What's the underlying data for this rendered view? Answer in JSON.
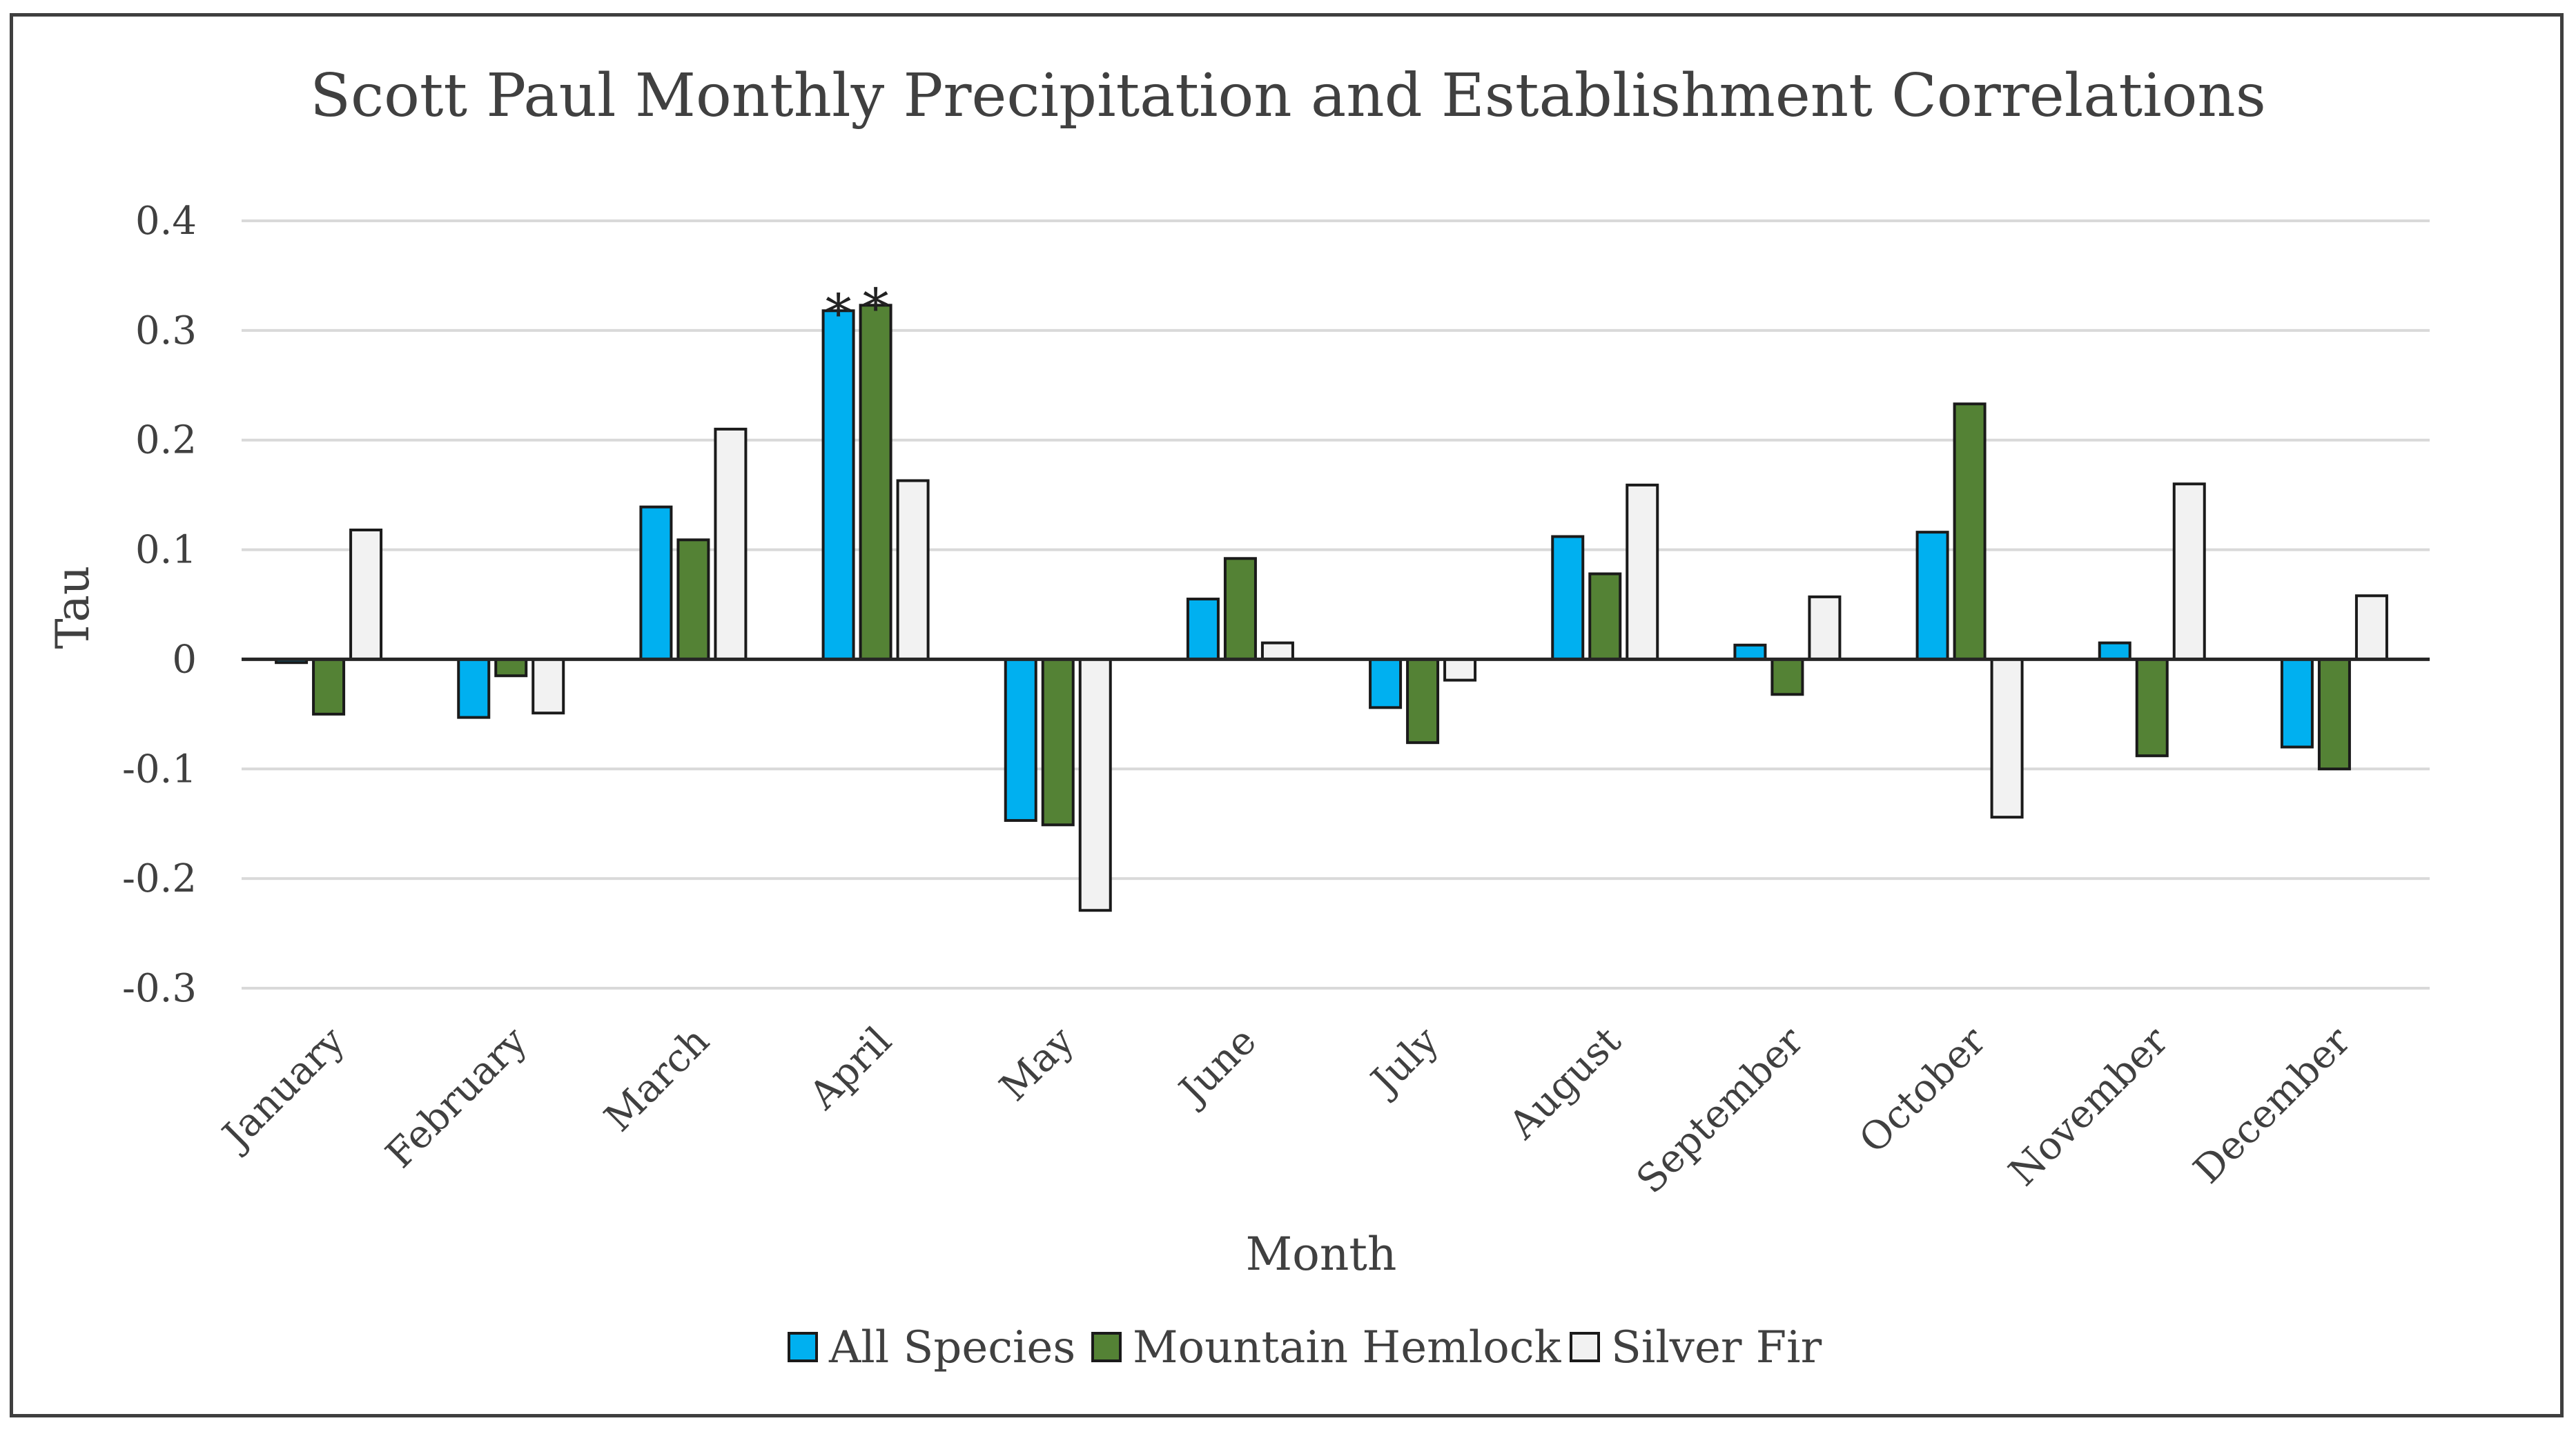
{
  "chart_data": {
    "type": "bar",
    "title": "Scott Paul Monthly Precipitation and Establishment Correlations",
    "xlabel": "Month",
    "ylabel": "Tau",
    "ylim": [
      -0.3,
      0.4
    ],
    "yticks": [
      0.4,
      0.3,
      0.2,
      0.1,
      0,
      -0.1,
      -0.2,
      -0.3
    ],
    "ytick_labels": [
      "0.4",
      "0.3",
      "0.2",
      "0.1",
      "0",
      "-0.1",
      "-0.2",
      "-0.3"
    ],
    "grid": true,
    "legend_position": "bottom-center",
    "categories": [
      "January",
      "February",
      "March",
      "April",
      "May",
      "June",
      "July",
      "August",
      "September",
      "October",
      "November",
      "December"
    ],
    "series": [
      {
        "name": "All Species",
        "color": "#00b0f0",
        "values": [
          -0.003,
          -0.053,
          0.139,
          0.318,
          -0.147,
          0.055,
          -0.044,
          0.112,
          0.013,
          0.116,
          0.015,
          -0.08
        ]
      },
      {
        "name": "Mountain Hemlock",
        "color": "#548235",
        "values": [
          -0.05,
          -0.015,
          0.109,
          0.323,
          -0.151,
          0.092,
          -0.076,
          0.078,
          -0.032,
          0.233,
          -0.088,
          -0.1
        ]
      },
      {
        "name": "Silver Fir",
        "color": "#f2f2f2",
        "values": [
          0.118,
          -0.049,
          0.21,
          0.163,
          -0.229,
          0.015,
          -0.019,
          0.159,
          0.057,
          -0.144,
          0.16,
          0.058
        ]
      }
    ],
    "annotations": [
      {
        "text": "*",
        "category": "April",
        "series": "All Species"
      },
      {
        "text": "*",
        "category": "April",
        "series": "Mountain Hemlock"
      }
    ]
  }
}
